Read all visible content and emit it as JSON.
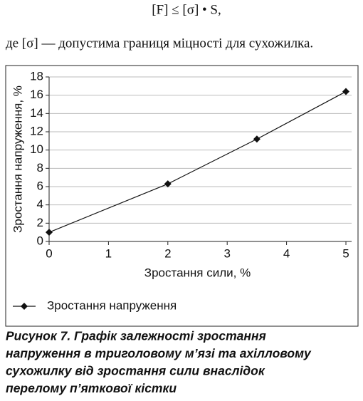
{
  "formula": "[F] ≤ [σ] • S,",
  "text": "де [σ] — допустима границя міцності для сухожилка.",
  "chart_data": {
    "type": "line",
    "x": [
      0,
      2,
      3.5,
      5
    ],
    "series": [
      {
        "name": "Зростання напруження",
        "color": "#111111",
        "values": [
          1,
          6.3,
          11.2,
          16.4
        ]
      }
    ],
    "xlim": [
      0,
      5
    ],
    "xticks": [
      0,
      1,
      2,
      3,
      4,
      5
    ],
    "ylim": [
      0,
      18
    ],
    "yticks": [
      0,
      2,
      4,
      6,
      8,
      10,
      12,
      14,
      16,
      18
    ],
    "xlabel": "Зростання сили, %",
    "ylabel": "Зростання напруження, %",
    "grid": true,
    "legend": "bottom"
  },
  "caption": [
    "Рисунок 7. Графік залежності зростання",
    "напруження в триголовому м’язі та ахілловому",
    "сухожилку від зростання сили внаслідок",
    "перелому п’яткової кістки"
  ]
}
